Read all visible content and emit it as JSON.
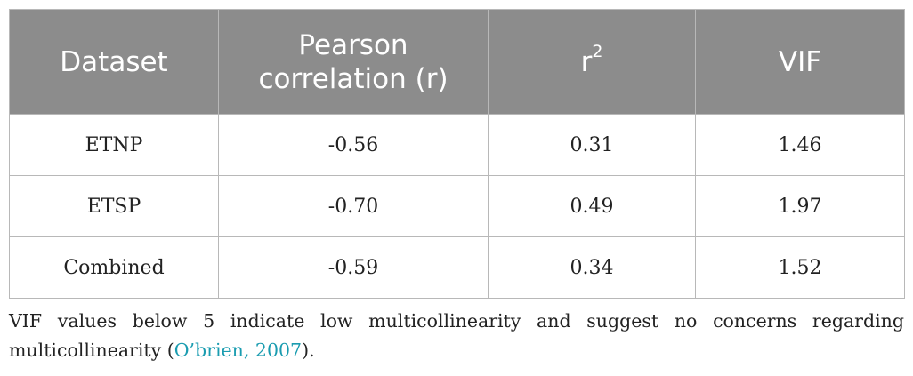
{
  "table": {
    "headers": {
      "dataset": "Dataset",
      "pearson_line1": "Pearson",
      "pearson_line2": "correlation (r)",
      "r2_base": "r",
      "r2_sup": "2",
      "vif": "VIF"
    },
    "rows": [
      {
        "dataset": "ETNP",
        "pearson": "-0.56",
        "r2": "0.31",
        "vif": "1.46"
      },
      {
        "dataset": "ETSP",
        "pearson": "-0.70",
        "r2": "0.49",
        "vif": "1.97"
      },
      {
        "dataset": "Combined",
        "pearson": "-0.59",
        "r2": "0.34",
        "vif": "1.52"
      }
    ]
  },
  "footnote": {
    "text": "VIF values below 5 indicate low multicollinearity and suggest no concerns regarding multicollinearity (",
    "citation": "O’brien, 2007",
    "tail": ")."
  },
  "colors": {
    "header_bg": "#8c8c8c",
    "header_text": "#ffffff",
    "border": "#b8b8b8",
    "citation_link": "#1a9cb0"
  }
}
